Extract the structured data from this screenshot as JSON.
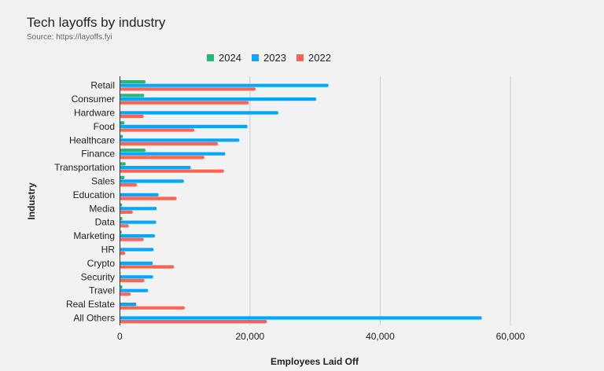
{
  "chart_data": {
    "type": "bar",
    "orientation": "horizontal",
    "title": "Tech layoffs by industry",
    "subtitle": "Source: https://layoffs.fyi",
    "xlabel": "Employees Laid Off",
    "ylabel": "Industry",
    "xlim": [
      0,
      60000
    ],
    "xticks": [
      0,
      20000,
      40000,
      60000
    ],
    "xtick_labels": [
      "0",
      "20,000",
      "40,000",
      "60,000"
    ],
    "grid": true,
    "legend_position": "top",
    "categories": [
      "Retail",
      "Consumer",
      "Hardware",
      "Food",
      "Healthcare",
      "Finance",
      "Transportation",
      "Sales",
      "Education",
      "Media",
      "Data",
      "Marketing",
      "HR",
      "Crypto",
      "Security",
      "Travel",
      "Real Estate",
      "All Others"
    ],
    "series": [
      {
        "name": "2024",
        "color": "#2bb673",
        "values": [
          3940,
          3740,
          0,
          720,
          480,
          3940,
          890,
          720,
          0,
          360,
          400,
          290,
          120,
          0,
          120,
          400,
          0,
          0
        ]
      },
      {
        "name": "2023",
        "color": "#00a8ff",
        "values": [
          32050,
          30170,
          24340,
          19600,
          18360,
          16190,
          10890,
          9840,
          5950,
          5660,
          5580,
          5390,
          5180,
          5060,
          5100,
          4340,
          2530,
          55600
        ]
      },
      {
        "name": "2022",
        "color": "#ff6352",
        "values": [
          20850,
          19800,
          3660,
          11450,
          15060,
          12980,
          15990,
          2610,
          8720,
          1980,
          1370,
          3660,
          810,
          8310,
          3780,
          1650,
          9970,
          22580
        ]
      }
    ]
  }
}
